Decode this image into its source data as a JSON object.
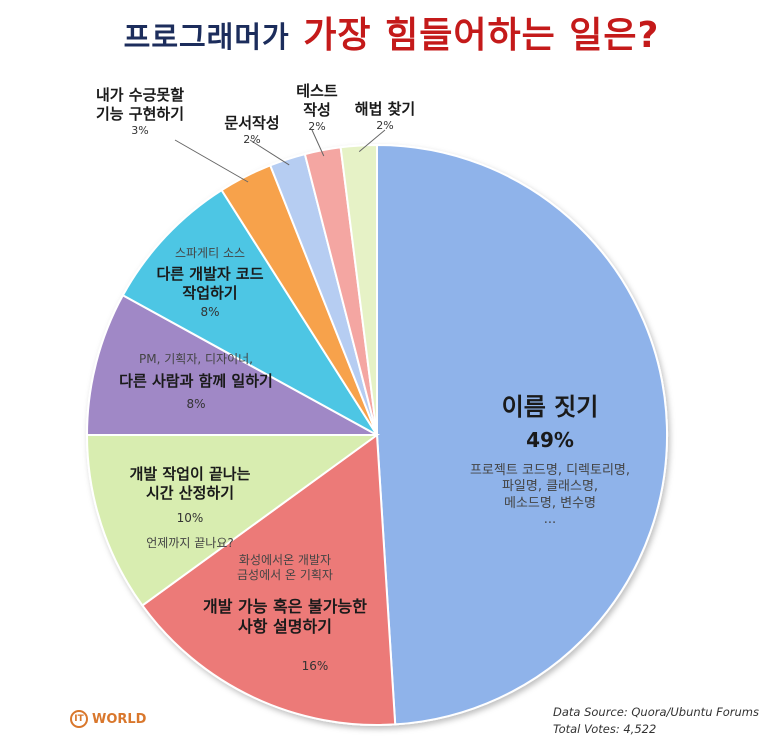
{
  "title": {
    "part1": "프로그래머가",
    "part2": "가장 힘들어하는 일은?"
  },
  "chart_data": {
    "type": "pie",
    "slices": [
      {
        "label": "이름 짓기",
        "value": 49,
        "pct_text": "49%",
        "note": "프로젝트 코드명, 디렉토리명,\n파일명, 클래스명,\n메소드명, 변수명\n...",
        "color": "#8fb3ea"
      },
      {
        "label": "개발 가능 혹은 불가능한\n사항 설명하기",
        "value": 16,
        "pct_text": "16%",
        "note": "화성에서온 개발자\n금성에서 온 기획자",
        "color": "#ec7a78"
      },
      {
        "label": "개발 작업이 끝나는\n시간 산정하기",
        "value": 10,
        "pct_text": "10%",
        "note": "언제까지 끝나요?",
        "color": "#d8edb0"
      },
      {
        "label": "다른 사람과 함께 일하기",
        "value": 8,
        "pct_text": "8%",
        "note": "PM, 기획자, 디자이너,",
        "color": "#a088c6"
      },
      {
        "label": "다른 개발자 코드\n작업하기",
        "value": 8,
        "pct_text": "8%",
        "note": "스파게티 소스",
        "color": "#4ec6e4"
      },
      {
        "label": "내가 수긍못할\n기능 구현하기",
        "value": 3,
        "pct_text": "3%",
        "note": "",
        "color": "#f7a24c"
      },
      {
        "label": "문서작성",
        "value": 2,
        "pct_text": "2%",
        "note": "",
        "color": "#b6cdf2"
      },
      {
        "label": "테스트\n작성",
        "value": 2,
        "pct_text": "2%",
        "note": "",
        "color": "#f4a6a2"
      },
      {
        "label": "해법 찾기",
        "value": 2,
        "pct_text": "2%",
        "note": "",
        "color": "#e6f2c6"
      }
    ]
  },
  "logo": {
    "text": "WORLD",
    "ring": "IT"
  },
  "source": {
    "line1": "Data Source: Quora/Ubuntu Forums",
    "line2": "Total Votes: 4,522"
  }
}
